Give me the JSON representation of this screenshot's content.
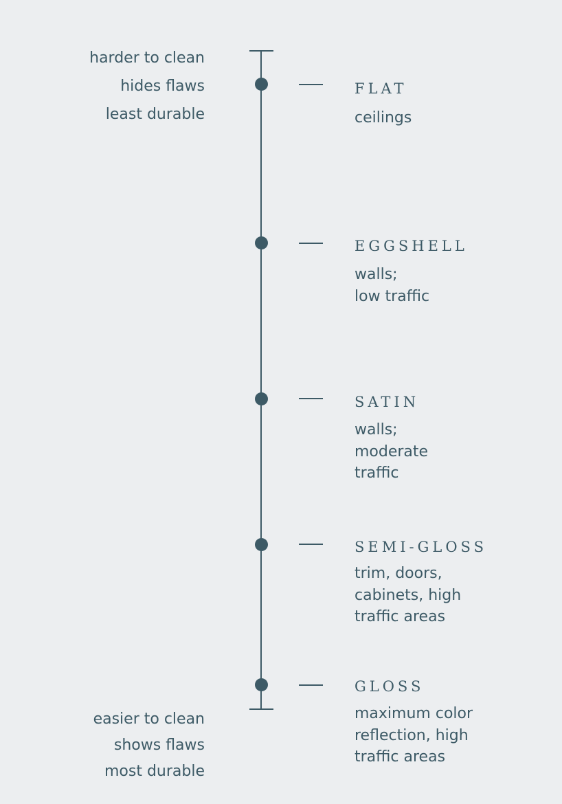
{
  "scale": {
    "top_labels": [
      "harder to clean",
      "hides flaws",
      "least durable"
    ],
    "bottom_labels": [
      "easier to clean",
      "shows flaws",
      "most durable"
    ]
  },
  "finishes": [
    {
      "name": "FLAT",
      "use": "ceilings"
    },
    {
      "name": "EGGSHELL",
      "use": "walls;\nlow traffic"
    },
    {
      "name": "SATIN",
      "use": "walls;\nmoderate\ntraffic"
    },
    {
      "name": "SEMI-GLOSS",
      "use": "trim, doors,\ncabinets, high\ntraffic areas"
    },
    {
      "name": "GLOSS",
      "use": "maximum color\nreflection, high\ntraffic areas"
    }
  ],
  "colors": {
    "ink": "#3d5a66",
    "background": "#eceef0"
  }
}
